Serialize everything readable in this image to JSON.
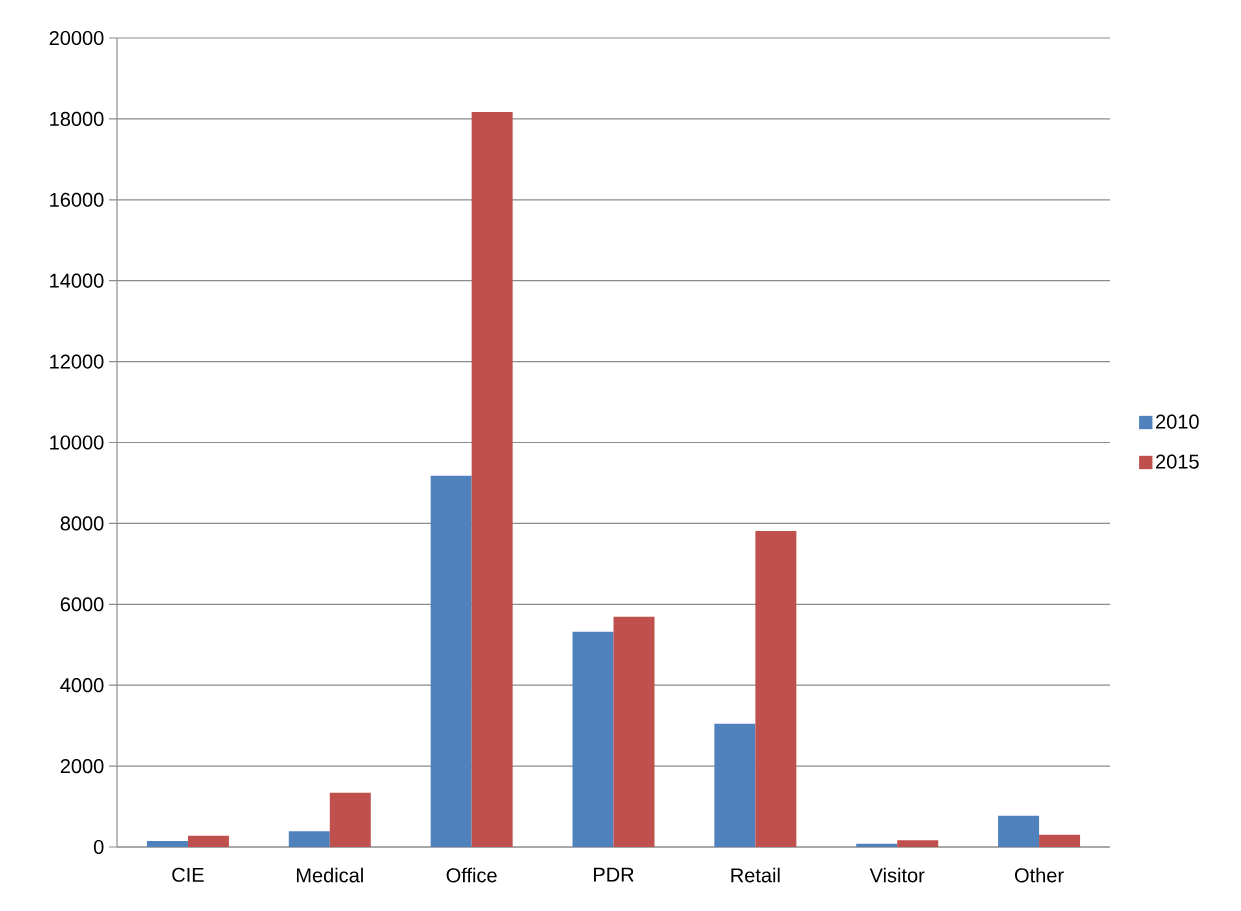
{
  "chart_data": {
    "type": "bar",
    "categories": [
      "CIE",
      "Medical",
      "Office",
      "PDR",
      "Retail",
      "Visitor",
      "Other"
    ],
    "series": [
      {
        "name": "2010",
        "color": "#4f81bd",
        "values": [
          150,
          390,
          9180,
          5320,
          3050,
          80,
          770
        ]
      },
      {
        "name": "2015",
        "color": "#c0504d",
        "values": [
          280,
          1340,
          18170,
          5690,
          7810,
          170,
          300
        ]
      }
    ],
    "ylim": [
      0,
      20000
    ],
    "yticks": [
      0,
      2000,
      4000,
      6000,
      8000,
      10000,
      12000,
      14000,
      16000,
      18000,
      20000
    ],
    "grid": "y",
    "legend": "right"
  }
}
